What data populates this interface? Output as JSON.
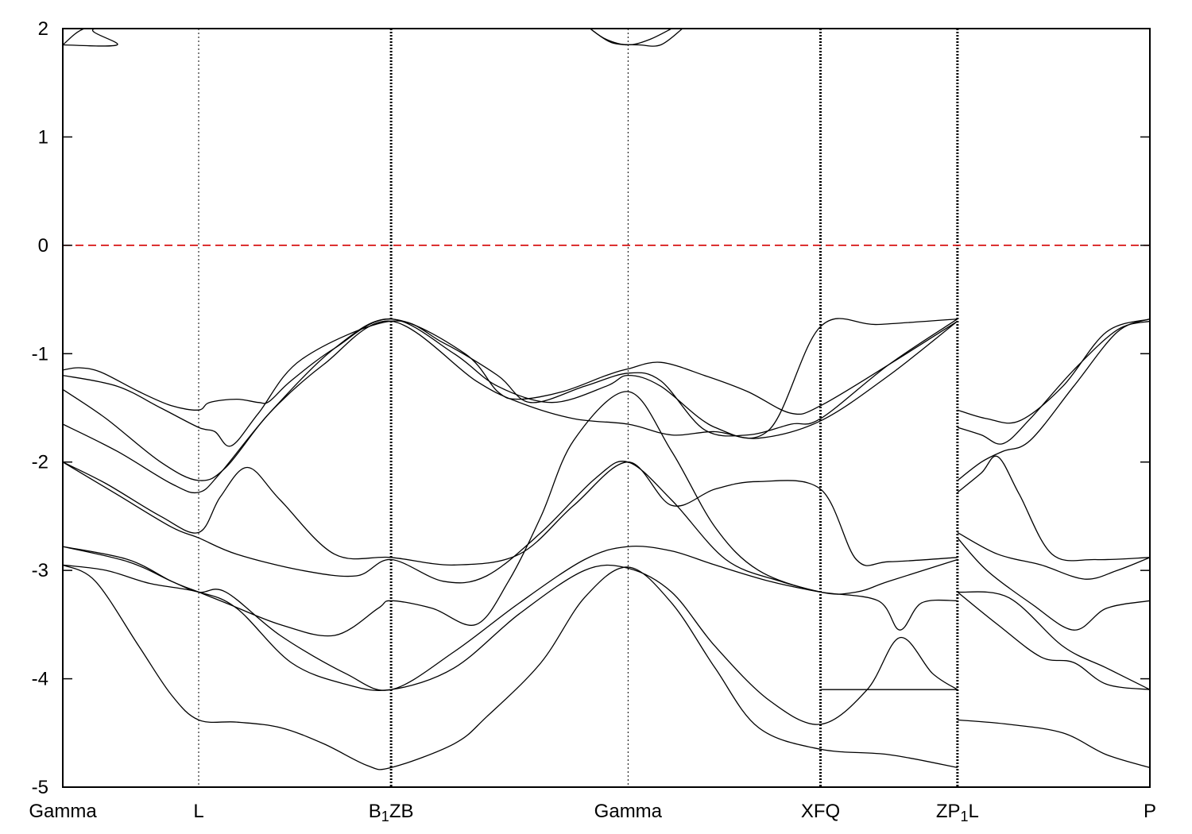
{
  "chart_data": {
    "type": "line",
    "title": "",
    "xlabel": "",
    "ylabel": "",
    "ylim": [
      -5,
      2
    ],
    "xlim": [
      0,
      10
    ],
    "grid": false,
    "y_ticks": [
      "2",
      "1",
      "0",
      "-1",
      "-2",
      "-3",
      "-4",
      "-5"
    ],
    "y_tick_values": [
      2,
      1,
      0,
      -1,
      -2,
      -3,
      -4,
      -5
    ],
    "k_points": [
      {
        "label": "Gamma",
        "x": 0.0,
        "line": false
      },
      {
        "label": "L",
        "x": 1.25,
        "line": true,
        "dense": false
      },
      {
        "label": "B1",
        "x": 3.02,
        "line": true,
        "dense": true
      },
      {
        "label": "Z",
        "x": 3.02,
        "line": false
      },
      {
        "label": "B",
        "x": 3.02,
        "line": false
      },
      {
        "label": "Gamma",
        "x": 5.2,
        "line": true,
        "dense": false
      },
      {
        "label": "X",
        "x": 6.97,
        "line": true,
        "dense": true
      },
      {
        "label": "F",
        "x": 6.97,
        "line": false
      },
      {
        "label": "Q",
        "x": 6.97,
        "line": false
      },
      {
        "label": "Z",
        "x": 8.23,
        "line": true,
        "dense": true
      },
      {
        "label": "P1",
        "x": 8.23,
        "line": false
      },
      {
        "label": "L",
        "x": 8.23,
        "line": false
      },
      {
        "label": "P",
        "x": 10.0,
        "line": false
      }
    ],
    "tick_text": [
      {
        "text": "Gamma",
        "x": 0.0
      },
      {
        "text": "L",
        "x": 1.25
      },
      {
        "text": "B1ZB",
        "x": 3.02
      },
      {
        "text": "Gamma",
        "x": 5.2
      },
      {
        "text": "XFQ",
        "x": 6.97
      },
      {
        "text": "ZP1L",
        "x": 8.23
      },
      {
        "text": "P",
        "x": 10.0
      }
    ],
    "fermi_level": {
      "y": 0,
      "color": "#d40000"
    },
    "series": [
      {
        "x": [
          0.0,
          0.5,
          0.3,
          1.25
        ],
        "y": [
          1.85,
          1.85,
          2.0,
          2.0
        ]
      },
      {
        "x": [
          0.0,
          0.2,
          0.5
        ],
        "y": [
          1.85,
          2.0,
          2.0
        ]
      },
      {
        "x": [
          4.85,
          5.0,
          5.2,
          5.4,
          5.6
        ],
        "y": [
          2.0,
          1.9,
          1.85,
          1.9,
          2.0
        ]
      },
      {
        "x": [
          4.85,
          5.05,
          5.3,
          5.5,
          5.7
        ],
        "y": [
          2.0,
          1.87,
          1.85,
          1.85,
          2.0
        ]
      },
      {
        "x": [
          0.0,
          0.15,
          0.35,
          0.7,
          1.0,
          1.25,
          1.35,
          1.6,
          1.8,
          1.9,
          2.1,
          2.5,
          3.02,
          3.7,
          4.0,
          4.2,
          4.6,
          5.0,
          5.2,
          5.5,
          5.9,
          6.3,
          6.7,
          6.97,
          7.6,
          8.23
        ],
        "y": [
          -1.15,
          -1.13,
          -1.17,
          -1.35,
          -1.48,
          -1.52,
          -1.45,
          -1.42,
          -1.45,
          -1.44,
          -1.25,
          -0.95,
          -0.68,
          -1.0,
          -1.35,
          -1.42,
          -1.35,
          -1.2,
          -1.14,
          -1.08,
          -1.2,
          -1.35,
          -1.55,
          -1.48,
          -1.1,
          -0.7
        ]
      },
      {
        "x": [
          0.0,
          0.5,
          0.9,
          1.25,
          1.4,
          1.55,
          1.8,
          2.2,
          3.02,
          3.5,
          4.0,
          4.3,
          4.8,
          5.2,
          5.5,
          5.9,
          6.3,
          6.7,
          6.97,
          7.6,
          8.23
        ],
        "y": [
          -1.2,
          -1.3,
          -1.5,
          -1.68,
          -1.72,
          -1.85,
          -1.55,
          -1.05,
          -0.7,
          -0.9,
          -1.2,
          -1.45,
          -1.3,
          -1.18,
          -1.25,
          -1.7,
          -1.75,
          -1.65,
          -1.6,
          -1.1,
          -0.68
        ]
      },
      {
        "x": [
          0.0,
          0.4,
          0.9,
          1.25,
          1.5,
          1.9,
          2.4,
          3.02,
          3.8,
          4.2,
          4.7,
          5.2,
          5.6,
          6.0,
          6.4,
          6.97,
          7.6,
          8.23
        ],
        "y": [
          -1.33,
          -1.6,
          -2.0,
          -2.17,
          -2.05,
          -1.55,
          -1.1,
          -0.7,
          -1.25,
          -1.45,
          -1.6,
          -1.65,
          -1.75,
          -1.72,
          -1.78,
          -1.62,
          -1.2,
          -0.7
        ]
      },
      {
        "x": [
          0.0,
          0.5,
          1.0,
          1.25,
          1.45,
          1.9,
          2.5,
          3.02,
          3.6,
          4.0,
          4.5,
          5.0,
          5.2,
          5.5,
          6.0,
          6.5,
          6.97,
          7.5,
          8.23
        ],
        "y": [
          -1.65,
          -1.9,
          -2.2,
          -2.28,
          -2.1,
          -1.55,
          -0.95,
          -0.68,
          -1.0,
          -1.3,
          -1.45,
          -1.3,
          -1.2,
          -1.3,
          -1.68,
          -1.7,
          -0.75,
          -0.73,
          -0.68
        ]
      },
      {
        "x": [
          0.0,
          0.4,
          0.9,
          1.25,
          1.45,
          1.7,
          2.0,
          2.5,
          3.02,
          3.6,
          4.2,
          4.7,
          5.2,
          5.6,
          6.0,
          6.4,
          6.97,
          7.3,
          7.6,
          8.23
        ],
        "y": [
          -2.0,
          -2.2,
          -2.5,
          -2.65,
          -2.32,
          -2.05,
          -2.35,
          -2.85,
          -2.88,
          -2.95,
          -2.85,
          -2.4,
          -2.0,
          -2.4,
          -2.25,
          -2.18,
          -2.25,
          -2.9,
          -2.92,
          -2.88
        ]
      },
      {
        "x": [
          0.0,
          0.5,
          1.0,
          1.25,
          1.6,
          2.2,
          2.7,
          3.02,
          3.5,
          3.9,
          4.4,
          4.9,
          5.2,
          5.6,
          6.1,
          6.6,
          6.97
        ],
        "y": [
          -2.0,
          -2.3,
          -2.6,
          -2.7,
          -2.85,
          -3.0,
          -3.05,
          -2.9,
          -3.1,
          -3.05,
          -2.65,
          -2.15,
          -2.0,
          -2.35,
          -2.9,
          -3.1,
          -3.2
        ]
      },
      {
        "x": [
          0.0,
          0.6,
          1.0,
          1.25,
          1.5,
          2.0,
          2.5,
          2.9,
          3.02,
          3.4,
          3.8,
          4.1,
          4.4,
          4.7,
          5.2,
          5.6,
          6.0,
          6.4,
          6.97,
          7.3,
          7.6,
          8.23
        ],
        "y": [
          -2.78,
          -2.9,
          -3.1,
          -3.2,
          -3.3,
          -3.5,
          -3.6,
          -3.35,
          -3.28,
          -3.35,
          -3.5,
          -3.1,
          -2.5,
          -1.8,
          -1.35,
          -1.9,
          -2.6,
          -3.0,
          -3.2,
          -3.2,
          -3.1,
          -2.9
        ]
      },
      {
        "x": [
          0.0,
          0.6,
          1.0,
          1.25,
          1.5,
          2.0,
          2.6,
          3.02,
          3.6,
          4.2,
          4.8,
          5.2,
          5.6,
          6.0,
          6.5,
          6.97,
          7.5,
          7.7,
          7.9,
          8.23
        ],
        "y": [
          -2.78,
          -2.92,
          -3.1,
          -3.2,
          -3.2,
          -3.6,
          -3.95,
          -4.1,
          -3.75,
          -3.3,
          -2.9,
          -2.78,
          -2.82,
          -2.95,
          -3.1,
          -3.2,
          -3.28,
          -3.55,
          -3.3,
          -3.28
        ]
      },
      {
        "x": [
          0.0,
          0.4,
          0.8,
          1.25,
          1.6,
          2.1,
          2.6,
          3.02,
          3.6,
          4.2,
          4.8,
          5.2,
          5.6,
          6.0,
          6.5,
          6.97,
          7.4,
          7.7,
          8.0,
          8.23
        ],
        "y": [
          -2.95,
          -3.0,
          -3.12,
          -3.2,
          -3.35,
          -3.85,
          -4.05,
          -4.1,
          -3.9,
          -3.4,
          -3.0,
          -2.98,
          -3.2,
          -3.7,
          -4.2,
          -4.42,
          -4.1,
          -3.62,
          -3.95,
          -4.1
        ]
      },
      {
        "x": [
          0.0,
          0.3,
          0.7,
          1.0,
          1.25,
          1.6,
          2.0,
          2.4,
          2.8,
          3.02,
          3.6,
          3.9,
          4.4,
          4.8,
          5.2,
          5.6,
          6.0,
          6.4,
          6.97,
          7.6,
          8.23
        ],
        "y": [
          -2.95,
          -3.1,
          -3.7,
          -4.15,
          -4.38,
          -4.4,
          -4.45,
          -4.6,
          -4.8,
          -4.82,
          -4.6,
          -4.35,
          -3.85,
          -3.25,
          -2.97,
          -3.3,
          -3.9,
          -4.45,
          -4.65,
          -4.7,
          -4.82
        ]
      },
      {
        "x": [
          6.97,
          8.23
        ],
        "y": [
          -4.1,
          -4.1
        ]
      },
      {
        "x": [
          8.23,
          8.5,
          8.8,
          9.2,
          9.6,
          10.0
        ],
        "y": [
          -1.52,
          -1.6,
          -1.62,
          -1.3,
          -0.8,
          -0.68
        ]
      },
      {
        "x": [
          8.23,
          8.45,
          8.65,
          8.9,
          9.3,
          9.7,
          10.0
        ],
        "y": [
          -1.68,
          -1.75,
          -1.83,
          -1.6,
          -1.15,
          -0.78,
          -0.7
        ]
      },
      {
        "x": [
          8.23,
          8.45,
          8.65,
          8.9,
          9.3,
          9.7,
          10.0
        ],
        "y": [
          -2.17,
          -2.0,
          -1.9,
          -1.8,
          -1.3,
          -0.8,
          -0.68
        ]
      },
      {
        "x": [
          8.23,
          8.45,
          8.6,
          8.8,
          9.1,
          9.5,
          10.0
        ],
        "y": [
          -2.28,
          -2.1,
          -1.95,
          -2.3,
          -2.85,
          -2.9,
          -2.88
        ]
      },
      {
        "x": [
          8.23,
          8.6,
          9.0,
          9.4,
          9.7,
          10.0
        ],
        "y": [
          -2.65,
          -2.85,
          -2.95,
          -3.08,
          -3.0,
          -2.88
        ]
      },
      {
        "x": [
          8.23,
          8.5,
          8.9,
          9.3,
          9.6,
          10.0
        ],
        "y": [
          -2.7,
          -3.0,
          -3.3,
          -3.55,
          -3.35,
          -3.28
        ]
      },
      {
        "x": [
          8.23,
          8.7,
          9.2,
          9.6,
          10.0
        ],
        "y": [
          -3.2,
          -3.25,
          -3.7,
          -3.9,
          -4.1
        ]
      },
      {
        "x": [
          8.23,
          8.6,
          9.0,
          9.3,
          9.6,
          10.0
        ],
        "y": [
          -3.2,
          -3.5,
          -3.8,
          -3.85,
          -4.05,
          -4.1
        ]
      },
      {
        "x": [
          8.23,
          8.7,
          9.2,
          9.6,
          10.0
        ],
        "y": [
          -4.38,
          -4.42,
          -4.5,
          -4.7,
          -4.82
        ]
      }
    ]
  }
}
